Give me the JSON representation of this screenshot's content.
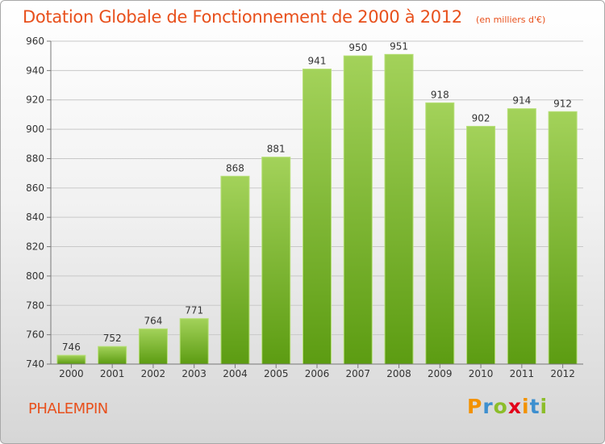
{
  "chart_data": {
    "type": "bar",
    "title": "Dotation Globale de Fonctionnement de 2000 à 2012",
    "subtitle": "(en milliers d'€)",
    "categories": [
      "2000",
      "2001",
      "2002",
      "2003",
      "2004",
      "2005",
      "2006",
      "2007",
      "2008",
      "2009",
      "2010",
      "2011",
      "2012"
    ],
    "values": [
      746,
      752,
      764,
      771,
      868,
      881,
      941,
      950,
      951,
      918,
      902,
      914,
      912
    ],
    "ylim": [
      740,
      960
    ],
    "yticks": [
      740,
      760,
      780,
      800,
      820,
      840,
      860,
      880,
      900,
      920,
      940,
      960
    ],
    "grid": true,
    "bar_color_top": "#a3d25a",
    "bar_color_bottom": "#5c9c12"
  },
  "footer": {
    "commune": "PHALEMPIN",
    "logo": {
      "letters": [
        "P",
        "r",
        "o",
        "x",
        "i",
        "t",
        "i"
      ],
      "colors": [
        "#f39200",
        "#3d8fcf",
        "#8cbd2a",
        "#e2001a",
        "#f39200",
        "#3d8fcf",
        "#8cbd2a"
      ]
    }
  }
}
